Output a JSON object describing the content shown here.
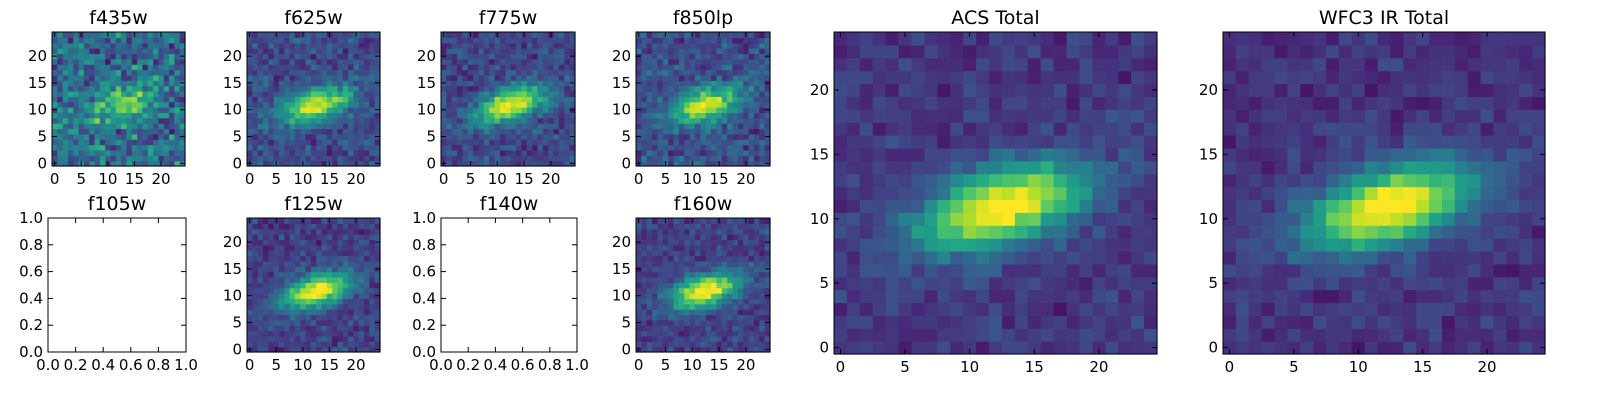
{
  "chart_data": [
    {
      "type": "heatmap",
      "title": "f435w",
      "xticks": [
        0,
        5,
        10,
        15,
        20
      ],
      "yticks": [
        0,
        5,
        10,
        15,
        20
      ],
      "xlim": [
        -0.5,
        24.5
      ],
      "ylim": [
        -0.5,
        24.5
      ],
      "grid_size": 25,
      "noise_level": 0.62,
      "source_strength": 0.38,
      "colormap": "viridis"
    },
    {
      "type": "heatmap",
      "title": "f625w",
      "xticks": [
        0,
        5,
        10,
        15,
        20
      ],
      "yticks": [
        0,
        5,
        10,
        15,
        20
      ],
      "xlim": [
        -0.5,
        24.5
      ],
      "ylim": [
        -0.5,
        24.5
      ],
      "grid_size": 25,
      "noise_level": 0.35,
      "source_strength": 0.75,
      "colormap": "viridis"
    },
    {
      "type": "heatmap",
      "title": "f775w",
      "xticks": [
        0,
        5,
        10,
        15,
        20
      ],
      "yticks": [
        0,
        5,
        10,
        15,
        20
      ],
      "xlim": [
        -0.5,
        24.5
      ],
      "ylim": [
        -0.5,
        24.5
      ],
      "grid_size": 25,
      "noise_level": 0.33,
      "source_strength": 0.78,
      "colormap": "viridis"
    },
    {
      "type": "heatmap",
      "title": "f850lp",
      "xticks": [
        0,
        5,
        10,
        15,
        20
      ],
      "yticks": [
        0,
        5,
        10,
        15,
        20
      ],
      "xlim": [
        -0.5,
        24.5
      ],
      "ylim": [
        -0.5,
        24.5
      ],
      "grid_size": 25,
      "noise_level": 0.38,
      "source_strength": 0.72,
      "colormap": "viridis"
    },
    {
      "type": "empty",
      "title": "f105w",
      "xticks": [
        0.0,
        0.2,
        0.4,
        0.6,
        0.8,
        1.0
      ],
      "yticks": [
        0.0,
        0.2,
        0.4,
        0.6,
        0.8,
        1.0
      ],
      "xlim": [
        0,
        1
      ],
      "ylim": [
        0,
        1
      ]
    },
    {
      "type": "heatmap",
      "title": "f125w",
      "xticks": [
        0,
        5,
        10,
        15,
        20
      ],
      "yticks": [
        0,
        5,
        10,
        15,
        20
      ],
      "xlim": [
        -0.5,
        24.5
      ],
      "ylim": [
        -0.5,
        24.5
      ],
      "grid_size": 25,
      "noise_level": 0.28,
      "source_strength": 0.85,
      "colormap": "viridis"
    },
    {
      "type": "empty",
      "title": "f140w",
      "xticks": [
        0.0,
        0.2,
        0.4,
        0.6,
        0.8,
        1.0
      ],
      "yticks": [
        0.0,
        0.2,
        0.4,
        0.6,
        0.8,
        1.0
      ],
      "xlim": [
        0,
        1
      ],
      "ylim": [
        0,
        1
      ]
    },
    {
      "type": "heatmap",
      "title": "f160w",
      "xticks": [
        0,
        5,
        10,
        15,
        20
      ],
      "yticks": [
        0,
        5,
        10,
        15,
        20
      ],
      "xlim": [
        -0.5,
        24.5
      ],
      "ylim": [
        -0.5,
        24.5
      ],
      "grid_size": 25,
      "noise_level": 0.28,
      "source_strength": 0.85,
      "colormap": "viridis"
    },
    {
      "type": "heatmap",
      "title": "ACS Total",
      "xticks": [
        0,
        5,
        10,
        15,
        20
      ],
      "yticks": [
        0,
        5,
        10,
        15,
        20
      ],
      "xlim": [
        -0.5,
        24.5
      ],
      "ylim": [
        -0.5,
        24.5
      ],
      "grid_size": 25,
      "noise_level": 0.22,
      "source_strength": 0.9,
      "colormap": "viridis"
    },
    {
      "type": "heatmap",
      "title": "WFC3 IR Total",
      "xticks": [
        0,
        5,
        10,
        15,
        20
      ],
      "yticks": [
        0,
        5,
        10,
        15,
        20
      ],
      "xlim": [
        -0.5,
        24.5
      ],
      "ylim": [
        -0.5,
        24.5
      ],
      "grid_size": 25,
      "noise_level": 0.2,
      "source_strength": 0.9,
      "colormap": "viridis"
    }
  ]
}
